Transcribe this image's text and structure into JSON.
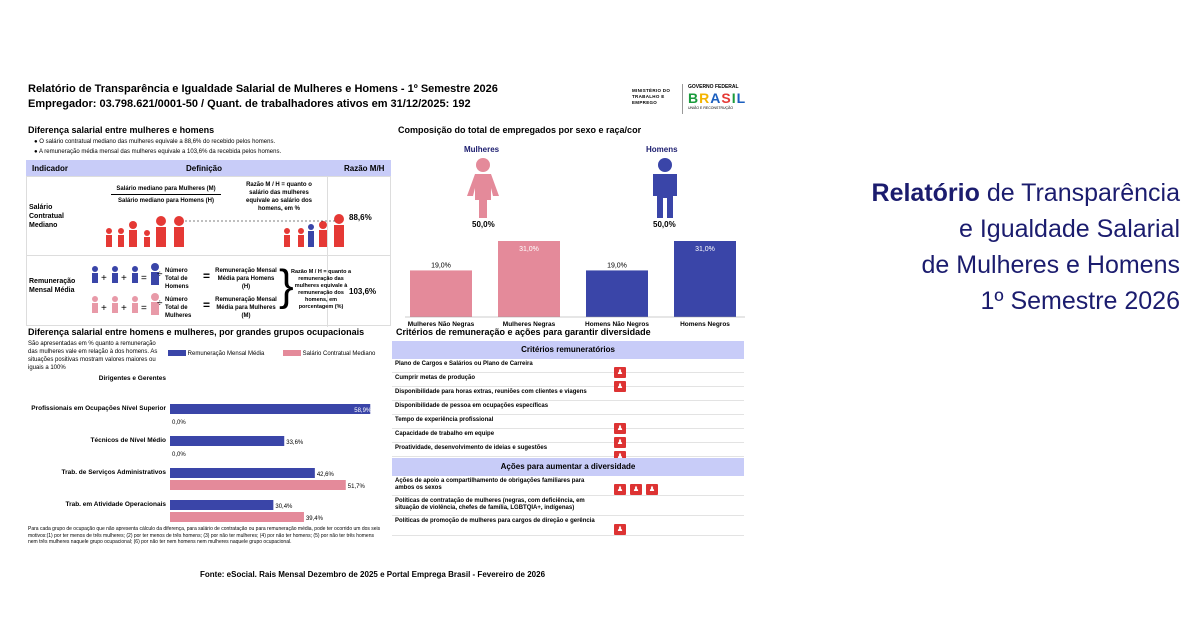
{
  "header": {
    "title": "Relatório de Transparência e Igualdade Salarial de Mulheres e Homens - 1º Semestre 2026",
    "employer": "Empregador: 03.798.621/0001-50 / Quant. de trabalhadores ativos em 31/12/2025: 192",
    "ministry": "MINISTÉRIO DO TRABALHO E EMPREGO",
    "gov": "GOVERNO FEDERAL",
    "brasil": "BRASIL",
    "union": "UNIÃO E RECONSTRUÇÃO"
  },
  "diff": {
    "title": "Diferença salarial entre mulheres e homens",
    "b1": "O salário contratual mediano das mulheres equivale a 88,6% do recebido pelos homens.",
    "b2": "A remuneração média mensal das mulheres equivale a 103,6% da recebida pelos homens.",
    "col_ind": "Indicador",
    "col_def": "Definição",
    "col_ratio": "Razão M/H",
    "r1": {
      "ind": "Salário Contratual Mediano",
      "f1": "Salário mediano para Mulheres (M)",
      "f2": "Salário mediano para Homens (H)",
      "note": "Razão M / H = quanto o salário das mulheres equivale ao salário dos homens, em %",
      "val": "88,6%"
    },
    "r2": {
      "ind": "Remuneração Mensal Média",
      "t1": "Número Total de Homens",
      "t2": "Número Total de Mulheres",
      "e1": "Remuneração Mensal Média para Homens (H)",
      "e2": "Remuneração Mensal Média para Mulheres (M)",
      "note": "Razão M / H = quanto a remuneração das mulheres equivale à remuneração dos homens, em porcentagem (%)",
      "val": "103,6%"
    }
  },
  "comp": {
    "title": "Composição do total de empregados por sexo e raça/cor",
    "women": "Mulheres",
    "men": "Homens",
    "women_pct": "50,0%",
    "men_pct": "50,0%"
  },
  "chart_data": [
    {
      "type": "bar",
      "categories": [
        "Mulheres Não Negras",
        "Mulheres Negras",
        "Homens Não Negros",
        "Homens Negros"
      ],
      "values": [
        19.0,
        31.0,
        19.0,
        31.0
      ],
      "labels": [
        "19,0%",
        "31,0%",
        "19,0%",
        "31,0%"
      ],
      "colors": [
        "#e48a9a",
        "#e48a9a",
        "#3a45a8",
        "#3a45a8"
      ]
    },
    {
      "type": "bar",
      "title": "Diferença salarial entre homens e mulheres, por grandes grupos ocupacionais",
      "subtitle": "São apresentadas em % quanto a remuneração das mulheres vale em relação à dos homens. As situações positivas mostram valores maiores ou iguais a 100%",
      "legend": [
        "Remuneração Mensal Média",
        "Salário Contratual Mediano"
      ],
      "categories": [
        "Dirigentes e Gerentes",
        "Profissionais em Ocupações Nível Superior",
        "Técnicos de Nível Médio",
        "Trab. de Serviços Administrativos",
        "Trab. em Atividade Operacionais"
      ],
      "series": [
        {
          "name": "Remuneração Mensal Média",
          "values": [
            null,
            58.9,
            33.6,
            42.6,
            30.4
          ],
          "labels": [
            "",
            "58,9%",
            "33,6%",
            "42,6%",
            "30,4%"
          ]
        },
        {
          "name": "Salário Contratual Mediano",
          "values": [
            null,
            0,
            0,
            51.7,
            39.4
          ],
          "labels": [
            "",
            "0,0%",
            "0,0%",
            "51,7%",
            "39,4%"
          ]
        }
      ],
      "footnote": "Para cada grupo de ocupação que não apresenta cálculo da diferença, para salário de contratação ou para remuneração média, pode ter ocorrido um dos seis motivos:(1) por ter menos de três mulheres; (2) por ter menos de três homens; (3) por não ter mulheres; (4) por não ter homens; (5) por não ter três homens nem três mulheres naquele grupo ocupacional; (6) por não ter nem homens nem mulheres naquele grupo ocupacional."
    }
  ],
  "criteria": {
    "title": "Critérios de remuneração e ações para garantir diversidade",
    "h1": "Critérios remuneratórios",
    "items": [
      {
        "t": "Plano de Cargos e Salários ou Plano de Carreira",
        "n": 1
      },
      {
        "t": "Cumprir metas de produção",
        "n": 1
      },
      {
        "t": "Disponibilidade para horas extras, reuniões com clientes e viagens",
        "n": 0
      },
      {
        "t": "Disponibilidade de pessoa em ocupações específicas",
        "n": 0
      },
      {
        "t": "Tempo de experiência profissional",
        "n": 1
      },
      {
        "t": "Capacidade de trabalho em equipe",
        "n": 1
      },
      {
        "t": "Proatividade, desenvolvimento de ideias e sugestões",
        "n": 1
      }
    ],
    "h2": "Ações para aumentar a diversidade",
    "actions": [
      {
        "t": "Ações de apoio a compartilhamento de obrigações familiares para ambos os sexos",
        "n": 3
      },
      {
        "t": "Políticas de contratação de mulheres (negras, com deficiência, em situação de violência, chefes de família, LGBTQIA+, indígenas)",
        "n": 0
      },
      {
        "t": "Políticas de promoção de mulheres para cargos de direção e gerência",
        "n": 1
      }
    ]
  },
  "source": "Fonte: eSocial. Rais Mensal Dezembro de 2025 e Portal Emprega Brasil - Fevereiro de 2026",
  "big_title": {
    "l1a": "Relatório",
    "l1b": " de Transparência",
    "l2": "e Igualdade Salarial",
    "l3": "de Mulheres e Homens",
    "l4": "1º Semestre 2026"
  }
}
